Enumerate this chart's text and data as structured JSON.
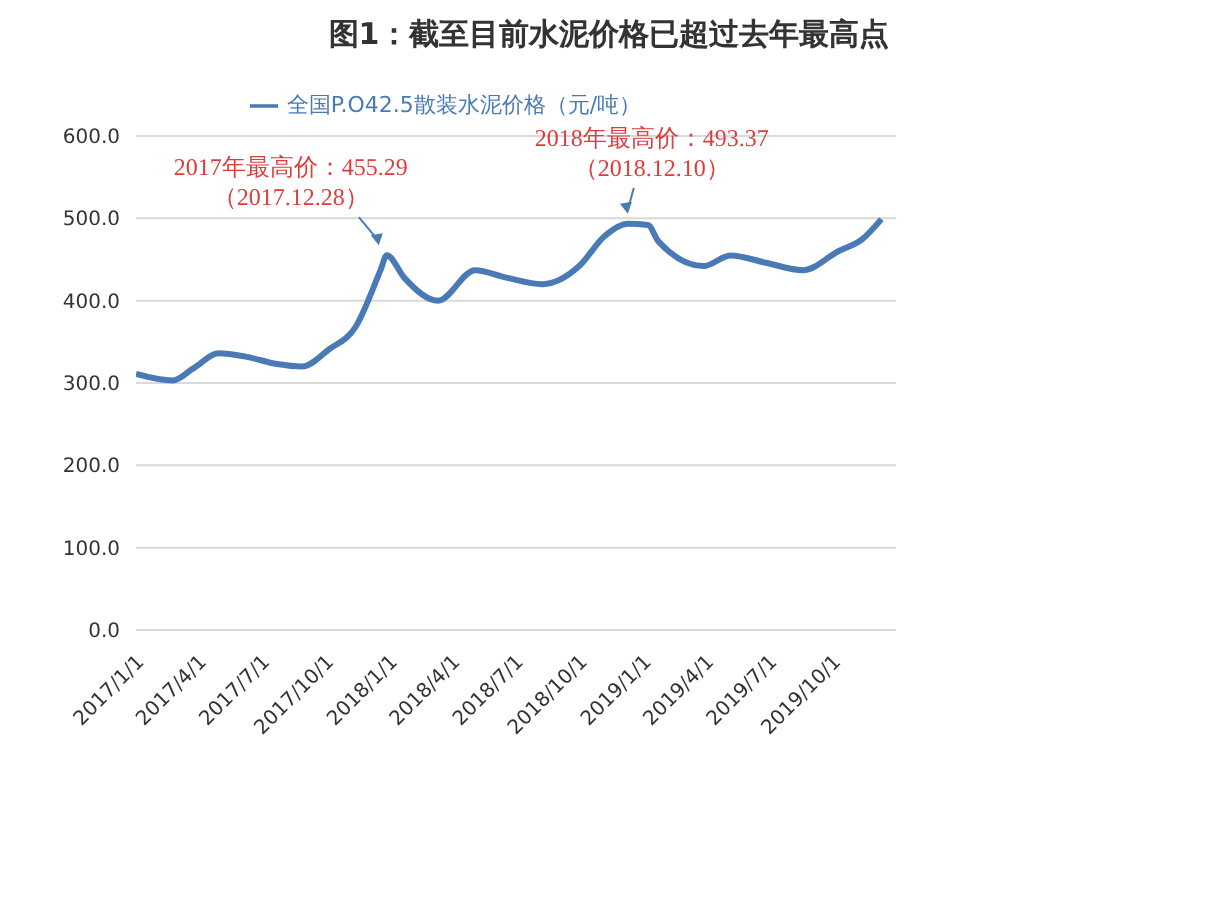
{
  "chart_data": {
    "type": "line",
    "title": "图1：截至目前水泥价格已超过去年最高点",
    "x": [
      "2017-01-01",
      "2017-02-23",
      "2017-03-25",
      "2017-04-30",
      "2017-06-08",
      "2017-07-23",
      "2017-08-28",
      "2017-10-06",
      "2017-11-13",
      "2017-12-19",
      "2017-12-28",
      "2018-01-22",
      "2018-03-12",
      "2018-05-04",
      "2018-06-18",
      "2018-08-09",
      "2018-10-01",
      "2018-11-06",
      "2018-12-10",
      "2019-01-08",
      "2019-01-23",
      "2019-03-29",
      "2019-05-07",
      "2019-06-27",
      "2019-08-19",
      "2019-10-09",
      "2019-11-13",
      "2019-12-10"
    ],
    "series": [
      {
        "name": "全国P.O42.5散装水泥价格（元/吨）",
        "color": "#4a7ab5",
        "values": [
          311,
          303,
          318,
          336,
          332,
          323,
          320,
          341,
          368,
          437,
          455.29,
          428,
          400,
          437,
          428,
          420,
          442,
          478,
          493.37,
          492,
          472,
          442,
          455,
          446,
          437,
          460,
          475,
          499
        ]
      }
    ],
    "xlim": [
      "2017-01-01",
      "2019-12-31"
    ],
    "xticks": [
      {
        "value": "2017-01-01",
        "label": "2017/1/1"
      },
      {
        "value": "2017-04-01",
        "label": "2017/4/1"
      },
      {
        "value": "2017-07-01",
        "label": "2017/7/1"
      },
      {
        "value": "2017-10-01",
        "label": "2017/10/1"
      },
      {
        "value": "2018-01-01",
        "label": "2018/1/1"
      },
      {
        "value": "2018-04-01",
        "label": "2018/4/1"
      },
      {
        "value": "2018-07-01",
        "label": "2018/7/1"
      },
      {
        "value": "2018-10-01",
        "label": "2018/10/1"
      },
      {
        "value": "2019-01-01",
        "label": "2019/1/1"
      },
      {
        "value": "2019-04-01",
        "label": "2019/4/1"
      },
      {
        "value": "2019-07-01",
        "label": "2019/7/1"
      },
      {
        "value": "2019-10-01",
        "label": "2019/10/1"
      }
    ],
    "ylim": [
      0,
      600
    ],
    "yticks": [
      {
        "value": 0,
        "label": "0.0"
      },
      {
        "value": 100,
        "label": "100.0"
      },
      {
        "value": 200,
        "label": "200.0"
      },
      {
        "value": 300,
        "label": "300.0"
      },
      {
        "value": 400,
        "label": "400.0"
      },
      {
        "value": 500,
        "label": "500.0"
      },
      {
        "value": 600,
        "label": "600.0"
      }
    ],
    "annotations": [
      {
        "text": "2017年最高价：455.29\n（2017.12.28）",
        "x": "2017-12-28",
        "y": 455.29
      },
      {
        "text": "2018年最高价：493.37\n（2018.12.10）",
        "x": "2018-12-10",
        "y": 493.37
      }
    ],
    "grid": "y",
    "legend": "top",
    "marker": "none",
    "line_style": "solid"
  }
}
